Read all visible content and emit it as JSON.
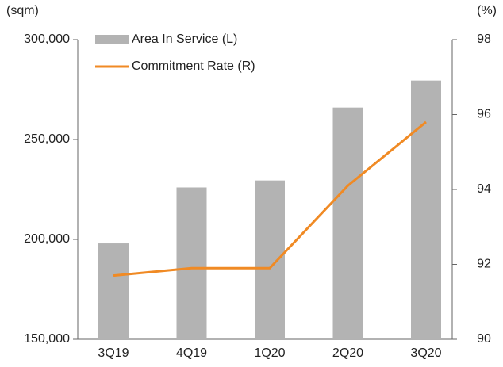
{
  "chart_data": {
    "type": "bar_line",
    "y_label": "(sqm)",
    "y2_label": "(%)",
    "categories": [
      "3Q19",
      "4Q19",
      "1Q20",
      "2Q20",
      "3Q20"
    ],
    "series": [
      {
        "name": "Area In Service (L)",
        "type": "bar",
        "color": "#b3b3b3",
        "values": [
          198000,
          226000,
          229500,
          266000,
          279500
        ]
      },
      {
        "name": "Commitment Rate (R)",
        "type": "line",
        "axis": "y2",
        "color": "#f08a24",
        "values": [
          91.7,
          91.9,
          91.9,
          94.1,
          95.8
        ]
      }
    ],
    "ylim": [
      150000,
      300000
    ],
    "yticks": [
      {
        "value": 150000,
        "label": "150,000"
      },
      {
        "value": 200000,
        "label": "200,000"
      },
      {
        "value": 250000,
        "label": "250,000"
      },
      {
        "value": 300000,
        "label": "300,000"
      }
    ],
    "y2lim": [
      90,
      98
    ],
    "y2ticks": [
      90,
      92,
      94,
      96,
      98
    ],
    "legend": "upper left"
  }
}
